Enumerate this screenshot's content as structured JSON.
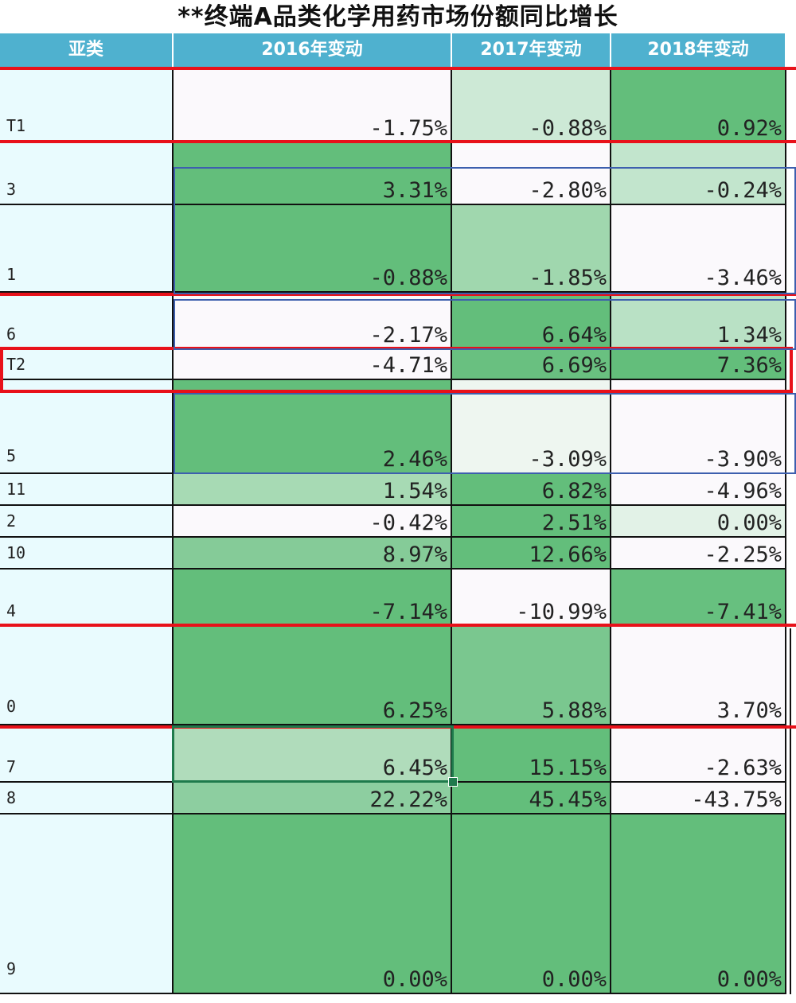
{
  "title": "**终端A品类化学用药市场份额同比增长",
  "headers": [
    "亚类",
    "2016年变动",
    "2017年变动",
    "2018年变动"
  ],
  "colors": {
    "header": "#4fb1cf",
    "label_bg": "#e9fbfe",
    "green_dark": "#63be7b",
    "red_marker": "#e8111a",
    "blue_marker": "#3d5fae"
  },
  "rows": [
    {
      "label": "T1",
      "values": [
        "-1.75%",
        "-0.88%",
        "0.92%"
      ],
      "fills": [
        "#fbf9fc",
        "#cde9d6",
        "#63be7b"
      ]
    },
    {
      "label": "3",
      "values": [
        "3.31%",
        "-2.80%",
        "-0.24%"
      ],
      "fills": [
        "#63be7b",
        "#fbf9fc",
        "#c2e5cd"
      ]
    },
    {
      "label": "1",
      "values": [
        "-0.88%",
        "-1.85%",
        "-3.46%"
      ],
      "fills": [
        "#63be7b",
        "#a0d7ae",
        "#fbf9fc"
      ]
    },
    {
      "label": "6",
      "values": [
        "-2.17%",
        "6.64%",
        "1.34%"
      ],
      "fills": [
        "#fbf9fc",
        "#63be7b",
        "#b9e1c5"
      ]
    },
    {
      "label": "T2",
      "values": [
        "-4.71%",
        "6.69%",
        "7.36%"
      ],
      "fills": [
        "#fbf9fc",
        "#69c080",
        "#63be7b"
      ]
    },
    {
      "label": "5",
      "values": [
        "2.46%",
        "-3.09%",
        "-3.90%"
      ],
      "fills": [
        "#63be7b",
        "#eef6f0",
        "#fbf9fc"
      ]
    },
    {
      "label": "11",
      "values": [
        "1.54%",
        "6.82%",
        "-4.96%"
      ],
      "fills": [
        "#a7dab4",
        "#63be7b",
        "#fbf9fc"
      ]
    },
    {
      "label": "2",
      "values": [
        "-0.42%",
        "2.51%",
        "0.00%"
      ],
      "fills": [
        "#fbf9fc",
        "#63be7b",
        "#e2f2e7"
      ]
    },
    {
      "label": "10",
      "values": [
        "8.97%",
        "12.66%",
        "-2.25%"
      ],
      "fills": [
        "#85cb98",
        "#63be7b",
        "#fbf9fc"
      ]
    },
    {
      "label": "4",
      "values": [
        "-7.14%",
        "-10.99%",
        "-7.41%"
      ],
      "fills": [
        "#63be7b",
        "#fbf9fc",
        "#67c07f"
      ]
    },
    {
      "label": "0",
      "values": [
        "6.25%",
        "5.88%",
        "3.70%"
      ],
      "fills": [
        "#63be7b",
        "#7ac78f",
        "#fbf9fc"
      ]
    },
    {
      "label": "7",
      "values": [
        "6.45%",
        "15.15%",
        "-2.63%"
      ],
      "fills": [
        "#b0dcbb",
        "#63be7b",
        "#fbf9fc"
      ]
    },
    {
      "label": "8",
      "values": [
        "22.22%",
        "45.45%",
        "-43.75%"
      ],
      "fills": [
        "#8dcea0",
        "#63be7b",
        "#fbf9fc"
      ]
    },
    {
      "label": "9",
      "values": [
        "0.00%",
        "0.00%",
        "0.00%"
      ],
      "fills": [
        "#63be7b",
        "#63be7b",
        "#63be7b"
      ]
    }
  ]
}
